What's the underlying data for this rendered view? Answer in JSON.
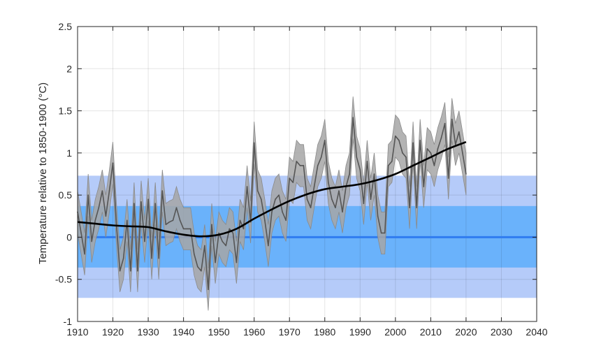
{
  "chart_data": {
    "type": "line",
    "title": "",
    "xlabel": "",
    "ylabel": "Temperature relative to 1850-1900 (°C)",
    "xlim": [
      1910,
      2040
    ],
    "ylim": [
      -1,
      2.5
    ],
    "xticks": [
      1910,
      1920,
      1930,
      1940,
      1950,
      1960,
      1970,
      1980,
      1990,
      2000,
      2010,
      2020,
      2030,
      2040
    ],
    "yticks": [
      -1,
      -0.5,
      0,
      0.5,
      1,
      1.5,
      2,
      2.5
    ],
    "ytick_labels": [
      "-1",
      "-0.5",
      "0",
      "0.5",
      "1",
      "1.5",
      "2",
      "2.5"
    ],
    "grid": true,
    "bands": [
      {
        "lower": -0.72,
        "upper": 0.73,
        "color": "#b5cbf9"
      },
      {
        "lower": -0.36,
        "upper": 0.37,
        "color": "#6ab2fb"
      }
    ],
    "reference_line": {
      "y": 0,
      "color": "#2f7cf0"
    },
    "annual": {
      "color": "#555555",
      "uncertainty_color": "#a6a6a6",
      "uncertainty_halfwidth": 0.25,
      "x": [
        1910,
        1911,
        1912,
        1913,
        1914,
        1915,
        1916,
        1917,
        1918,
        1919,
        1920,
        1921,
        1922,
        1923,
        1924,
        1925,
        1926,
        1927,
        1928,
        1929,
        1930,
        1931,
        1932,
        1933,
        1934,
        1935,
        1936,
        1937,
        1938,
        1939,
        1940,
        1941,
        1942,
        1943,
        1944,
        1945,
        1946,
        1947,
        1948,
        1949,
        1950,
        1951,
        1952,
        1953,
        1954,
        1955,
        1956,
        1957,
        1958,
        1959,
        1960,
        1961,
        1962,
        1963,
        1964,
        1965,
        1966,
        1967,
        1968,
        1969,
        1970,
        1971,
        1972,
        1973,
        1974,
        1975,
        1976,
        1977,
        1978,
        1979,
        1980,
        1981,
        1982,
        1983,
        1984,
        1985,
        1986,
        1987,
        1988,
        1989,
        1990,
        1991,
        1992,
        1993,
        1994,
        1995,
        1996,
        1997,
        1998,
        1999,
        2000,
        2001,
        2002,
        2003,
        2004,
        2005,
        2006,
        2007,
        2008,
        2009,
        2010,
        2011,
        2012,
        2013,
        2014,
        2015,
        2016,
        2017,
        2018,
        2019,
        2020
      ],
      "y": [
        0.3,
        0.05,
        -0.2,
        0.5,
        -0.05,
        0.2,
        0.35,
        0.55,
        0.25,
        0.55,
        0.88,
        0.15,
        -0.4,
        -0.25,
        0.2,
        -0.4,
        0.4,
        -0.4,
        0.42,
        -0.05,
        0.45,
        -0.25,
        0.4,
        -0.25,
        0.55,
        0.15,
        0.18,
        0.2,
        0.35,
        0.2,
        0.1,
        0.1,
        0.1,
        -0.2,
        -0.35,
        -0.4,
        -0.1,
        -0.62,
        0.15,
        -0.3,
        0.05,
        -0.05,
        -0.1,
        0.1,
        0.05,
        -0.3,
        0.2,
        0.1,
        0.6,
        0.18,
        1.12,
        0.55,
        0.45,
        0.2,
        -0.1,
        0.3,
        0.45,
        0.5,
        0.3,
        0.2,
        0.7,
        0.65,
        0.9,
        0.85,
        0.85,
        0.45,
        0.35,
        0.6,
        0.85,
        0.95,
        1.15,
        0.65,
        0.45,
        0.35,
        0.55,
        0.3,
        0.6,
        0.75,
        1.42,
        0.95,
        0.8,
        0.4,
        0.9,
        0.45,
        0.75,
        0.25,
        0.05,
        0.05,
        0.85,
        0.9,
        1.2,
        1.15,
        1.0,
        0.95,
        0.35,
        1.12,
        0.35,
        1.15,
        0.6,
        1.05,
        1.0,
        0.85,
        1.05,
        1.18,
        1.35,
        0.7,
        1.4,
        1.1,
        1.25,
        1.0,
        0.75
      ]
    },
    "smoothed": {
      "color": "#000000",
      "x": [
        1910,
        1915,
        1920,
        1925,
        1930,
        1935,
        1940,
        1945,
        1950,
        1955,
        1960,
        1965,
        1970,
        1975,
        1980,
        1985,
        1990,
        1995,
        2000,
        2005,
        2010,
        2015,
        2020
      ],
      "y": [
        0.18,
        0.16,
        0.14,
        0.13,
        0.12,
        0.07,
        0.03,
        0.01,
        0.03,
        0.1,
        0.22,
        0.33,
        0.43,
        0.51,
        0.57,
        0.6,
        0.63,
        0.68,
        0.75,
        0.85,
        0.95,
        1.05,
        1.13
      ]
    }
  }
}
